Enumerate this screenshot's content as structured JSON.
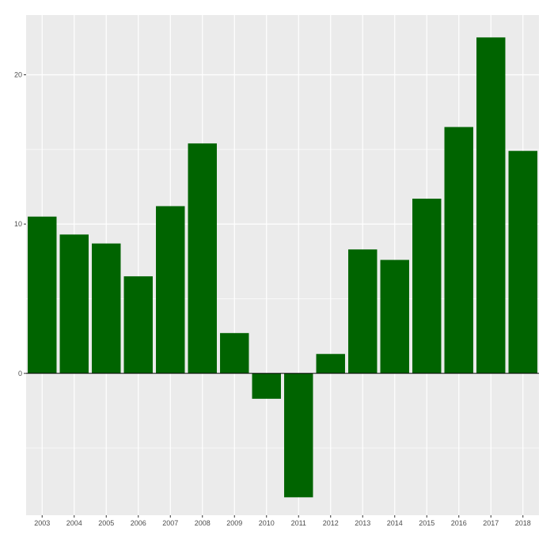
{
  "chart_data": {
    "type": "bar",
    "title": "",
    "xlabel": "",
    "ylabel": "",
    "categories": [
      "2003",
      "2004",
      "2005",
      "2006",
      "2007",
      "2008",
      "2009",
      "2010",
      "2011",
      "2012",
      "2013",
      "2014",
      "2015",
      "2016",
      "2017",
      "2018"
    ],
    "values": [
      10.5,
      9.3,
      8.7,
      6.5,
      11.2,
      15.4,
      2.7,
      -1.7,
      -8.3,
      1.3,
      8.3,
      7.6,
      11.7,
      16.5,
      22.5,
      14.9
    ],
    "ylim": [
      -9.5,
      24.0
    ],
    "yticks": [
      0,
      10,
      20
    ],
    "ytick_labels": [
      "0",
      "10",
      "20"
    ],
    "grid": true,
    "legend": "none",
    "colors": {
      "bar": "#006400",
      "panel": "#ebebeb",
      "grid": "#ffffff",
      "zero_line": "#000000",
      "tick_text": "#4d4d4d"
    }
  }
}
